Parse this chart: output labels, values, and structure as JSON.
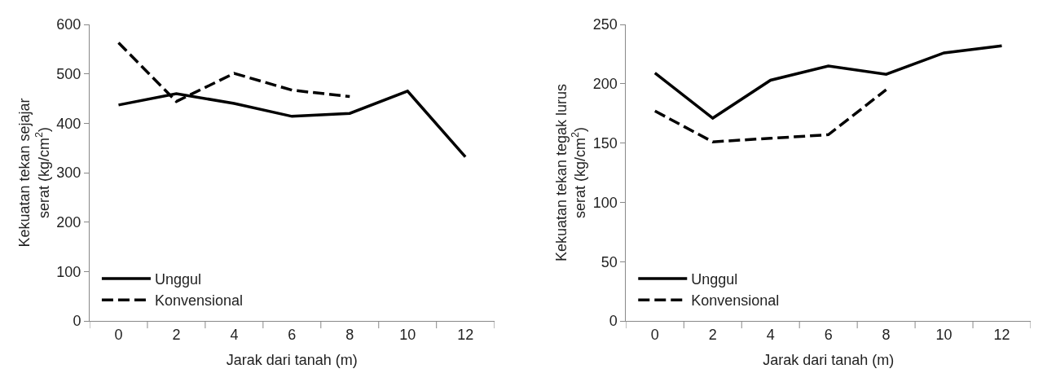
{
  "chart_data": [
    {
      "type": "line",
      "xlabel": "Jarak dari tanah (m)",
      "ylabel": "Kekuatan tekan sejajar\nserat (kg/cm$^{2}$)",
      "categories": [
        "0",
        "2",
        "4",
        "6",
        "8",
        "10",
        "12"
      ],
      "ylim": [
        0,
        600
      ],
      "yticks": [
        0,
        100,
        200,
        300,
        400,
        500,
        600
      ],
      "legend": "bottom left",
      "marker": "none",
      "series": [
        {
          "name": "Unggul",
          "color": "#000000",
          "line_style": "solid",
          "values": [
            437,
            460,
            440,
            414,
            420,
            465,
            332
          ]
        },
        {
          "name": "Konvensional",
          "color": "#000000",
          "line_style": "dashed",
          "values": [
            563,
            444,
            501,
            467,
            454,
            null,
            null
          ]
        }
      ]
    },
    {
      "type": "line",
      "xlabel": "Jarak dari tanah (m)",
      "ylabel": "Kekuatan tekan tegak lurus\nserat (kg/cm$^{2}$)",
      "categories": [
        "0",
        "2",
        "4",
        "6",
        "8",
        "10",
        "12"
      ],
      "ylim": [
        0,
        250
      ],
      "yticks": [
        0,
        50,
        100,
        150,
        200,
        250
      ],
      "legend": "bottom left",
      "marker": "none",
      "series": [
        {
          "name": "Unggul",
          "color": "#000000",
          "line_style": "solid",
          "values": [
            209,
            171,
            203,
            215,
            208,
            226,
            232
          ]
        },
        {
          "name": "Konvensional",
          "color": "#000000",
          "line_style": "dashed",
          "values": [
            177,
            151,
            154,
            157,
            195,
            null,
            null
          ]
        }
      ]
    }
  ]
}
